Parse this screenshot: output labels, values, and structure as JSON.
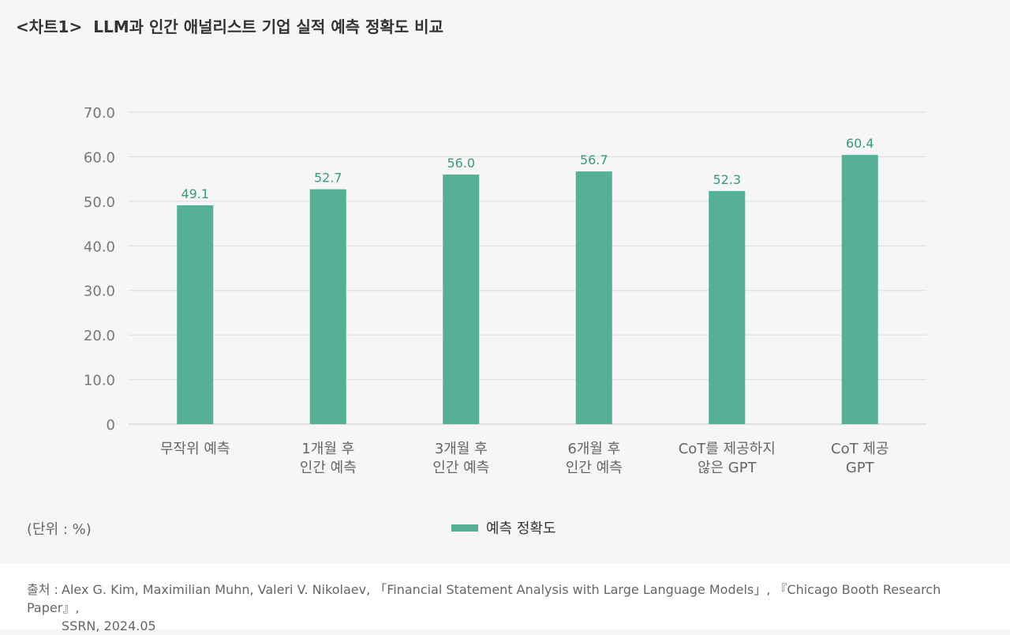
{
  "header": {
    "tag": "<차트1>",
    "title": "LLM과 인간 애널리스트 기업 실적 예측 정확도 비교"
  },
  "chart_data": {
    "type": "bar",
    "categories": [
      [
        "무작위 예측"
      ],
      [
        "1개월 후",
        "인간 예측"
      ],
      [
        "3개월 후",
        "인간 예측"
      ],
      [
        "6개월 후",
        "인간 예측"
      ],
      [
        "CoT를 제공하지",
        "않은 GPT"
      ],
      [
        "CoT 제공",
        "GPT"
      ]
    ],
    "series": [
      {
        "name": "예측 정확도",
        "values": [
          49.1,
          52.7,
          56.0,
          56.7,
          52.3,
          60.4
        ],
        "color": "#56b097"
      }
    ],
    "value_labels": [
      "49.1",
      "52.7",
      "56.0",
      "56.7",
      "52.3",
      "60.4"
    ],
    "yticks": [
      "0",
      "10.0",
      "20.0",
      "30.0",
      "40.0",
      "50.0",
      "60.0",
      "70.0"
    ],
    "ylim": [
      0,
      70
    ],
    "grid": true,
    "legend_position": "bottom-center",
    "label_color": "#3a9a7e"
  },
  "unit_label": "(단위 : %)",
  "legend": {
    "label": "예측 정확도"
  },
  "source": {
    "label": "출처 :",
    "line1": "Alex G. Kim, Maximilian Muhn, Valeri V. Nikolaev, 「Financial Statement Analysis with Large Language Models」, 『Chicago Booth Research Paper』,",
    "line2": "SSRN, 2024.05"
  }
}
